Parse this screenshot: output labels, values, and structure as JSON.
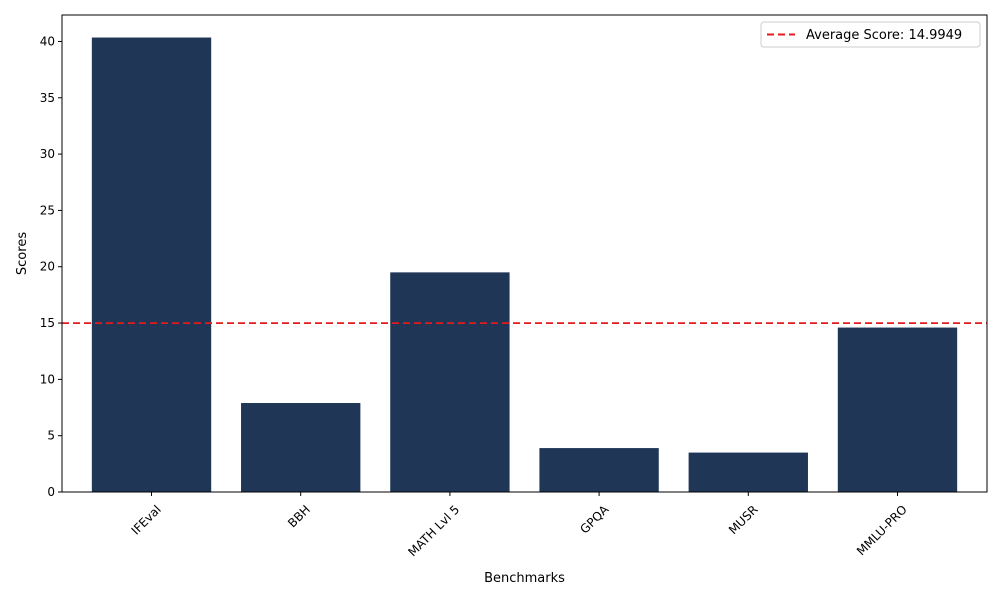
{
  "chart_data": {
    "type": "bar",
    "title": "",
    "xlabel": "Benchmarks",
    "ylabel": "Scores",
    "categories": [
      "IFEval",
      "BBH",
      "MATH Lvl 5",
      "GPQA",
      "MUSR",
      "MMLU-PRO"
    ],
    "values": [
      40.35,
      7.9,
      19.5,
      3.9,
      3.5,
      14.6
    ],
    "ylim": [
      0,
      42.35
    ],
    "yticks": [
      0,
      5,
      10,
      15,
      20,
      25,
      30,
      35,
      40
    ],
    "bar_color": "#1f3657",
    "grid": false,
    "reference_line": {
      "value": 14.9949,
      "label": "Average Score: 14.9949",
      "color": "#e41a1c",
      "style": "dashed"
    },
    "legend_position": "top-right",
    "xtick_rotation": 45
  }
}
